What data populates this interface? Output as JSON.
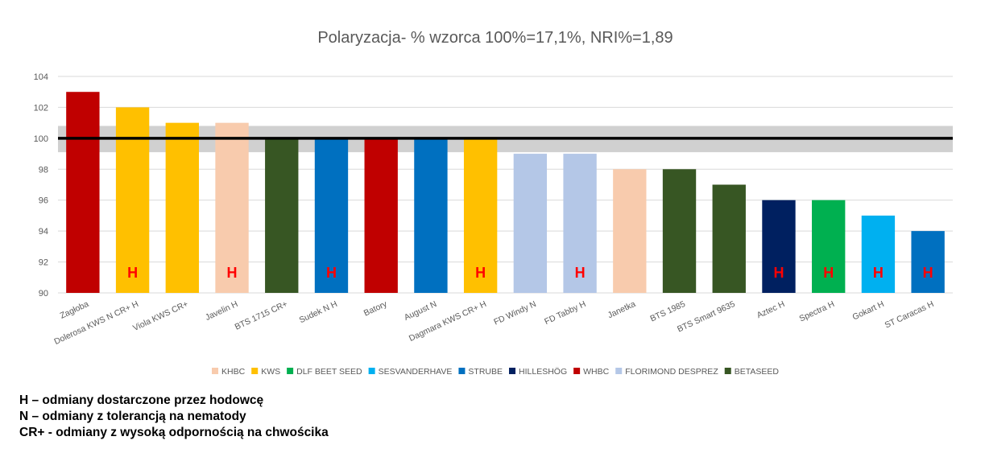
{
  "chart_data": {
    "type": "bar",
    "title": "Polaryzacja- % wzorca 100%=17,1%, NRI%=1,89",
    "xlabel": "",
    "ylabel": "",
    "ylim": [
      90,
      104
    ],
    "yticks": [
      "90",
      "92",
      "94",
      "96",
      "98",
      "100",
      "102",
      "104"
    ],
    "grid": true,
    "reference_line": 100,
    "reference_band": [
      99.1,
      100.8
    ],
    "categories": [
      "Zagłoba",
      "Dolerosa KWS N CR+ H",
      "Viola KWS CR+",
      "Javelin H",
      "BTS 1715 CR+",
      "Sudek N H",
      "Batory",
      "August N",
      "Dagmara KWS CR+ H",
      "FD Windy N",
      "FD Tabby  H",
      "Janetka",
      "BTS 1985",
      "BTS Smart 9635",
      "Aztec  H",
      "Spectra  H",
      "Gokart  H",
      "ST Caracas  H"
    ],
    "values": [
      103,
      102,
      101,
      101,
      100,
      100,
      100,
      100,
      100,
      99,
      99,
      98,
      98,
      97,
      96,
      96,
      95,
      94
    ],
    "breeders": [
      "WHBC",
      "KWS",
      "KWS",
      "KHBC",
      "BETASEED",
      "STRUBE",
      "WHBC",
      "STRUBE",
      "KWS",
      "FLORIMOND DESPREZ",
      "FLORIMOND DESPREZ",
      "KHBC",
      "BETASEED",
      "BETASEED",
      "HILLESHÖG",
      "DLF BEET SEED",
      "SESVANDERHAVE",
      "STRUBE"
    ],
    "bar_marks": [
      "",
      "H",
      "",
      "H",
      "",
      "H",
      "",
      "",
      "H",
      "",
      "H",
      "",
      "",
      "",
      "H",
      "H",
      "H",
      "H"
    ],
    "legend_position": "bottom",
    "legend": [
      {
        "name": "KHBC",
        "color": "#f8cbad"
      },
      {
        "name": "KWS",
        "color": "#ffc000"
      },
      {
        "name": "DLF BEET SEED",
        "color": "#00b050"
      },
      {
        "name": "SESVANDERHAVE",
        "color": "#00b0f0"
      },
      {
        "name": "STRUBE",
        "color": "#0070c0"
      },
      {
        "name": "HILLESHÖG",
        "color": "#002060"
      },
      {
        "name": "WHBC",
        "color": "#c00000"
      },
      {
        "name": "FLORIMOND DESPREZ",
        "color": "#b4c7e7"
      },
      {
        "name": "BETASEED",
        "color": "#375623"
      }
    ]
  },
  "notes": [
    "H – odmiany dostarczone przez hodowcę",
    "N – odmiany z tolerancją na nematody",
    "CR+ - odmiany z wysoką odpornością na chwościka"
  ]
}
